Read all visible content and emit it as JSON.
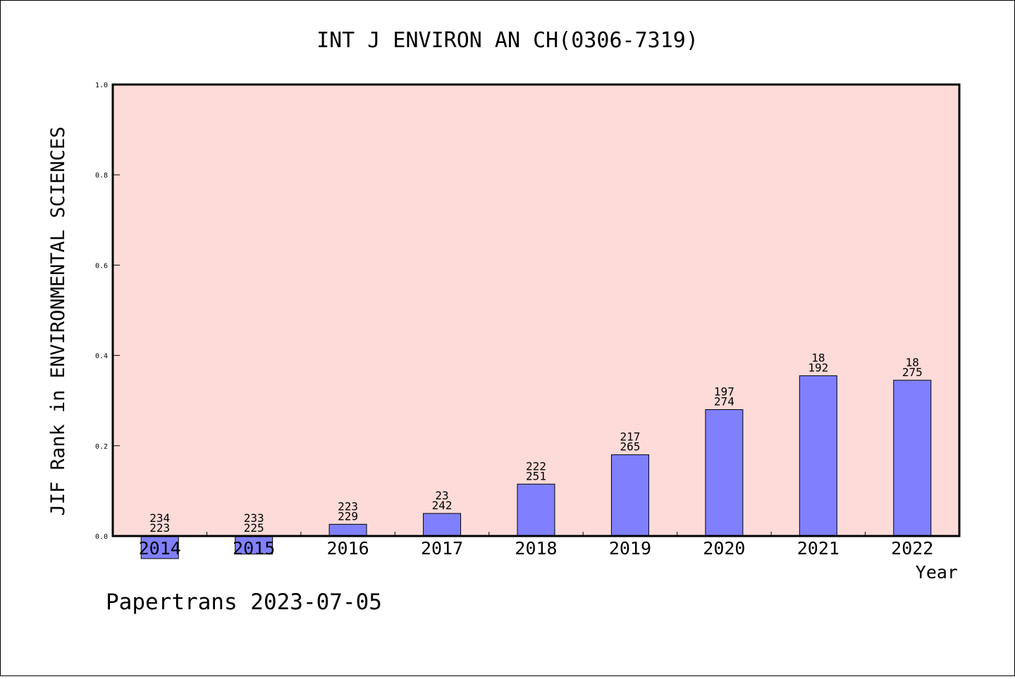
{
  "chart_data": {
    "type": "bar",
    "title": "INT J ENVIRON AN CH(0306-7319)",
    "xlabel": "Year",
    "ylabel": "JIF Rank in ENVIRONMENTAL SCIENCES",
    "ylim": [
      0,
      1.0
    ],
    "yticks": [
      "0.0",
      "0.2",
      "0.4",
      "0.6",
      "0.8",
      "1.0"
    ],
    "categories": [
      "2014",
      "2015",
      "2016",
      "2017",
      "2018",
      "2019",
      "2020",
      "2021",
      "2022"
    ],
    "values": [
      -0.05,
      -0.04,
      0.026,
      0.05,
      0.115,
      0.18,
      0.28,
      0.355,
      0.345
    ],
    "rank_labels": [
      "234",
      "233",
      "223",
      "23",
      "222",
      "217",
      "197",
      "18",
      "18"
    ],
    "total_labels": [
      "223",
      "225",
      "229",
      "242",
      "251",
      "265",
      "274",
      "192",
      "275"
    ],
    "grid": false,
    "colors": {
      "plot_bg": "#fddbd8",
      "bar": "#8080ff",
      "axis": "#000000"
    }
  },
  "footer": "Papertrans 2023-07-05"
}
